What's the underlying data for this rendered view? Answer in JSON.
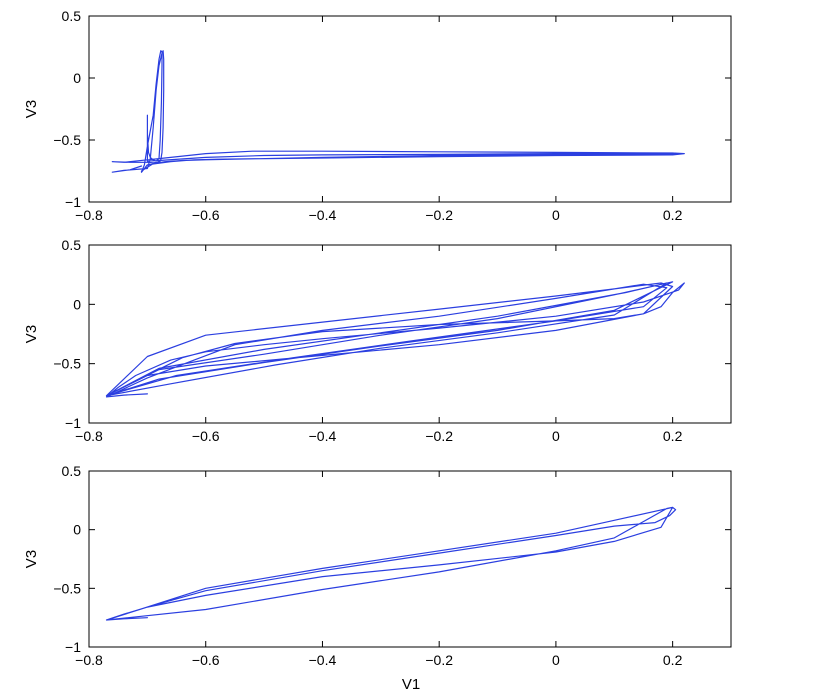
{
  "chart_data": [
    {
      "type": "line",
      "xlabel": "",
      "ylabel": "V3",
      "xlim": [
        -0.8,
        0.3
      ],
      "ylim": [
        -1,
        0.5
      ],
      "xticks": [
        -0.8,
        -0.6,
        -0.4,
        -0.2,
        0,
        0.2
      ],
      "xtick_labels": [
        "−0.8",
        "−0.6",
        "−0.4",
        "−0.2",
        "0",
        "0.2"
      ],
      "yticks": [
        -1,
        -0.5,
        0,
        0.5
      ],
      "ytick_labels": [
        "−1",
        "−0.5",
        "0",
        "0.5"
      ],
      "grid": false,
      "color": "#2b3fe0",
      "series": [
        {
          "x": [
            -0.71,
            -0.73,
            -0.76,
            -0.74,
            -0.7,
            -0.695,
            -0.69,
            -0.685,
            -0.68,
            -0.675,
            -0.673,
            -0.672,
            -0.672,
            -0.673,
            -0.675,
            -0.677,
            -0.678,
            -0.68,
            -0.683,
            -0.69,
            -0.7,
            -0.73,
            -0.76,
            -0.74,
            -0.7,
            -0.68,
            -0.6,
            -0.52,
            -0.4,
            -0.2,
            0.0,
            0.2,
            0.22,
            0.2,
            0.0,
            -0.2,
            -0.4,
            -0.58,
            -0.62,
            -0.66,
            -0.7,
            -0.71,
            -0.705,
            -0.7,
            -0.69,
            -0.685,
            -0.68,
            -0.677,
            -0.675,
            -0.675,
            -0.676,
            -0.678,
            -0.68,
            -0.685,
            -0.69,
            -0.695,
            -0.698,
            -0.7,
            -0.7,
            -0.7,
            -0.7,
            -0.7,
            -0.68,
            -0.6,
            -0.5,
            -0.4,
            -0.2,
            0.0,
            0.2,
            0.215,
            0.2,
            0.0,
            -0.2,
            -0.4,
            -0.55,
            -0.6,
            -0.64,
            -0.67,
            -0.69,
            -0.7,
            -0.71,
            -0.71
          ],
          "y": [
            -0.71,
            -0.74,
            -0.76,
            -0.745,
            -0.73,
            -0.65,
            -0.4,
            -0.1,
            0.1,
            0.2,
            0.22,
            0.15,
            -0.1,
            -0.4,
            -0.6,
            -0.66,
            -0.67,
            -0.675,
            -0.68,
            -0.685,
            -0.68,
            -0.68,
            -0.675,
            -0.68,
            -0.66,
            -0.65,
            -0.61,
            -0.59,
            -0.59,
            -0.595,
            -0.6,
            -0.605,
            -0.61,
            -0.62,
            -0.625,
            -0.635,
            -0.645,
            -0.655,
            -0.66,
            -0.675,
            -0.7,
            -0.76,
            -0.7,
            -0.55,
            -0.3,
            -0.05,
            0.15,
            0.22,
            0.21,
            0.1,
            -0.2,
            -0.5,
            -0.65,
            -0.67,
            -0.66,
            -0.64,
            -0.6,
            -0.45,
            -0.3,
            -0.45,
            -0.65,
            -0.67,
            -0.665,
            -0.64,
            -0.625,
            -0.62,
            -0.615,
            -0.61,
            -0.605,
            -0.61,
            -0.612,
            -0.615,
            -0.625,
            -0.64,
            -0.655,
            -0.66,
            -0.665,
            -0.675,
            -0.69,
            -0.72,
            -0.75,
            -0.76
          ]
        }
      ]
    },
    {
      "type": "line",
      "xlabel": "",
      "ylabel": "V3",
      "xlim": [
        -0.8,
        0.3
      ],
      "ylim": [
        -1,
        0.5
      ],
      "xticks": [
        -0.8,
        -0.6,
        -0.4,
        -0.2,
        0,
        0.2
      ],
      "xtick_labels": [
        "−0.8",
        "−0.6",
        "−0.4",
        "−0.2",
        "0",
        "0.2"
      ],
      "yticks": [
        -1,
        -0.5,
        0,
        0.5
      ],
      "ytick_labels": [
        "−1",
        "−0.5",
        "0",
        "0.5"
      ],
      "grid": false,
      "color": "#2b3fe0",
      "series": [
        {
          "x": [
            -0.7,
            -0.74,
            -0.77,
            -0.75,
            -0.72,
            -0.66,
            -0.6,
            -0.5,
            -0.4,
            -0.2,
            0.0,
            0.15,
            0.21,
            0.22,
            0.2,
            0.18,
            0.15,
            0.1,
            0.0,
            -0.2,
            -0.4,
            -0.55,
            -0.64,
            -0.71,
            -0.77,
            -0.7,
            -0.6,
            -0.4,
            -0.2,
            0.0,
            0.15,
            0.2,
            0.18,
            0.1,
            0.0,
            -0.2,
            -0.4,
            -0.6,
            -0.7,
            -0.77,
            -0.68,
            -0.5,
            -0.3,
            -0.1,
            0.1,
            0.2,
            0.1,
            -0.1,
            -0.3,
            -0.5,
            -0.68,
            -0.77,
            -0.66,
            -0.48,
            -0.3,
            -0.1,
            0.1,
            0.19,
            0.12,
            -0.1,
            -0.3,
            -0.5,
            -0.68,
            -0.77,
            -0.65,
            -0.45,
            -0.25,
            0.0,
            0.15,
            0.19,
            0.15,
            0.0,
            -0.2,
            -0.4,
            -0.55,
            -0.62,
            -0.7,
            -0.77
          ],
          "y": [
            -0.755,
            -0.765,
            -0.78,
            -0.7,
            -0.6,
            -0.47,
            -0.4,
            -0.34,
            -0.29,
            -0.2,
            -0.1,
            0.02,
            0.12,
            0.18,
            0.1,
            -0.02,
            -0.08,
            -0.12,
            -0.14,
            -0.17,
            -0.23,
            -0.33,
            -0.45,
            -0.62,
            -0.77,
            -0.6,
            -0.52,
            -0.43,
            -0.34,
            -0.22,
            -0.08,
            0.15,
            0.18,
            0.13,
            0.07,
            -0.04,
            -0.15,
            -0.26,
            -0.44,
            -0.77,
            -0.63,
            -0.49,
            -0.35,
            -0.22,
            -0.05,
            0.19,
            0.08,
            -0.12,
            -0.26,
            -0.42,
            -0.55,
            -0.77,
            -0.67,
            -0.51,
            -0.37,
            -0.24,
            -0.09,
            0.18,
            0.1,
            -0.1,
            -0.24,
            -0.38,
            -0.54,
            -0.77,
            -0.6,
            -0.45,
            -0.31,
            -0.14,
            -0.02,
            0.14,
            0.17,
            0.05,
            -0.1,
            -0.22,
            -0.34,
            -0.47,
            -0.62,
            -0.78
          ]
        }
      ]
    },
    {
      "type": "line",
      "xlabel": "V1",
      "ylabel": "V3",
      "xlim": [
        -0.8,
        0.3
      ],
      "ylim": [
        -1,
        0.5
      ],
      "xticks": [
        -0.8,
        -0.6,
        -0.4,
        -0.2,
        0,
        0.2
      ],
      "xtick_labels": [
        "−0.8",
        "−0.6",
        "−0.4",
        "−0.2",
        "0",
        "0.2"
      ],
      "yticks": [
        -1,
        -0.5,
        0,
        0.5
      ],
      "ytick_labels": [
        "−1",
        "−0.5",
        "0",
        "0.5"
      ],
      "grid": false,
      "color": "#2b3fe0",
      "series": [
        {
          "x": [
            -0.7,
            -0.74,
            -0.77,
            -0.74,
            -0.7,
            -0.6,
            -0.4,
            -0.2,
            0.0,
            0.1,
            0.18,
            0.2,
            0.205,
            0.195,
            0.17,
            0.1,
            0.0,
            -0.2,
            -0.4,
            -0.6,
            -0.7,
            -0.77,
            -0.6,
            -0.4,
            -0.2,
            0.0,
            0.1,
            0.19,
            0.2,
            0.1,
            0.0,
            -0.2,
            -0.4,
            -0.6,
            -0.77
          ],
          "y": [
            -0.75,
            -0.76,
            -0.77,
            -0.72,
            -0.66,
            -0.56,
            -0.4,
            -0.3,
            -0.19,
            -0.1,
            0.02,
            0.19,
            0.17,
            0.12,
            0.06,
            0.03,
            -0.05,
            -0.2,
            -0.35,
            -0.52,
            -0.66,
            -0.77,
            -0.68,
            -0.51,
            -0.36,
            -0.18,
            -0.07,
            0.18,
            0.19,
            0.08,
            -0.03,
            -0.18,
            -0.33,
            -0.5,
            -0.77
          ]
        }
      ]
    }
  ]
}
